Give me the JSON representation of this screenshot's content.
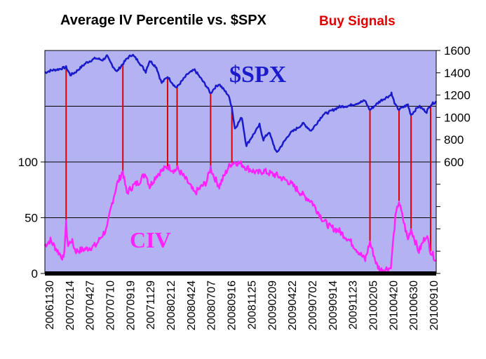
{
  "chart_data": {
    "type": "line",
    "title": "Average IV Percentile vs. $SPX",
    "subtitle": "Buy Signals",
    "colors": {
      "plot_bg": "#b3b3f2",
      "spx": "#1a1acc",
      "civ": "#ff22ff",
      "signal": "#e00000",
      "series_label_spx": "#1a1acc",
      "series_label_civ": "#ff22ff"
    },
    "x_tick_labels": [
      "20061130",
      "20070214",
      "20070427",
      "20070710",
      "20070919",
      "20071129",
      "20080212",
      "20080424",
      "20080707",
      "20080916",
      "20081125",
      "20090209",
      "20090422",
      "20090702",
      "20090914",
      "20091123",
      "20100205",
      "20100420",
      "20100630",
      "20100910"
    ],
    "x_range": [
      "2006-11-30",
      "2010-09-30"
    ],
    "left_axis": {
      "ticks": [
        0,
        50,
        100
      ],
      "ylim": [
        0,
        200
      ]
    },
    "right_axis": {
      "ticks": [
        600,
        800,
        1000,
        1200,
        1400,
        1600
      ],
      "ylim": [
        -400,
        1600
      ]
    },
    "grid": true,
    "series": [
      {
        "name": "$SPX",
        "axis": "right",
        "points": [
          [
            "2006-11-30",
            1400
          ],
          [
            "2006-12-20",
            1420
          ],
          [
            "2007-01-15",
            1430
          ],
          [
            "2007-02-14",
            1450
          ],
          [
            "2007-03-01",
            1380
          ],
          [
            "2007-03-20",
            1405
          ],
          [
            "2007-04-27",
            1490
          ],
          [
            "2007-05-31",
            1530
          ],
          [
            "2007-06-25",
            1515
          ],
          [
            "2007-07-10",
            1550
          ],
          [
            "2007-07-26",
            1480
          ],
          [
            "2007-08-15",
            1410
          ],
          [
            "2007-09-19",
            1525
          ],
          [
            "2007-10-09",
            1565
          ],
          [
            "2007-11-01",
            1500
          ],
          [
            "2007-11-26",
            1410
          ],
          [
            "2007-12-10",
            1510
          ],
          [
            "2008-01-03",
            1450
          ],
          [
            "2008-01-22",
            1310
          ],
          [
            "2008-02-12",
            1365
          ],
          [
            "2008-03-10",
            1275
          ],
          [
            "2008-03-17",
            1270
          ],
          [
            "2008-04-24",
            1390
          ],
          [
            "2008-05-19",
            1425
          ],
          [
            "2008-06-30",
            1280
          ],
          [
            "2008-07-15",
            1215
          ],
          [
            "2008-07-31",
            1270
          ],
          [
            "2008-08-15",
            1300
          ],
          [
            "2008-09-16",
            1200
          ],
          [
            "2008-09-29",
            1100
          ],
          [
            "2008-10-10",
            900
          ],
          [
            "2008-11-04",
            1000
          ],
          [
            "2008-11-20",
            750
          ],
          [
            "2008-12-30",
            900
          ],
          [
            "2009-01-06",
            935
          ],
          [
            "2009-01-20",
            800
          ],
          [
            "2009-02-09",
            870
          ],
          [
            "2009-03-09",
            680
          ],
          [
            "2009-04-22",
            850
          ],
          [
            "2009-06-12",
            945
          ],
          [
            "2009-07-10",
            880
          ],
          [
            "2009-08-21",
            1025
          ],
          [
            "2009-09-14",
            1050
          ],
          [
            "2009-10-19",
            1095
          ],
          [
            "2009-11-23",
            1105
          ],
          [
            "2010-01-19",
            1150
          ],
          [
            "2010-02-05",
            1065
          ],
          [
            "2010-03-15",
            1150
          ],
          [
            "2010-04-20",
            1200
          ],
          [
            "2010-04-23",
            1217
          ],
          [
            "2010-05-07",
            1110
          ],
          [
            "2010-05-20",
            1070
          ],
          [
            "2010-06-21",
            1115
          ],
          [
            "2010-07-02",
            1022
          ],
          [
            "2010-07-30",
            1100
          ],
          [
            "2010-08-27",
            1050
          ],
          [
            "2010-09-10",
            1110
          ],
          [
            "2010-09-30",
            1145
          ]
        ]
      },
      {
        "name": "CIV",
        "axis": "left",
        "points": [
          [
            "2006-11-30",
            25
          ],
          [
            "2006-12-20",
            30
          ],
          [
            "2007-01-15",
            20
          ],
          [
            "2007-01-31",
            15
          ],
          [
            "2007-02-05",
            12
          ],
          [
            "2007-02-14",
            45
          ],
          [
            "2007-02-21",
            25
          ],
          [
            "2007-03-06",
            30
          ],
          [
            "2007-03-20",
            20
          ],
          [
            "2007-04-27",
            22
          ],
          [
            "2007-05-31",
            25
          ],
          [
            "2007-06-25",
            35
          ],
          [
            "2007-07-10",
            40
          ],
          [
            "2007-07-26",
            60
          ],
          [
            "2007-08-15",
            80
          ],
          [
            "2007-09-05",
            92
          ],
          [
            "2007-09-19",
            72
          ],
          [
            "2007-10-09",
            78
          ],
          [
            "2007-11-01",
            82
          ],
          [
            "2007-11-26",
            90
          ],
          [
            "2007-12-10",
            78
          ],
          [
            "2008-01-03",
            88
          ],
          [
            "2008-01-22",
            92
          ],
          [
            "2008-02-12",
            96
          ],
          [
            "2008-03-10",
            92
          ],
          [
            "2008-03-17",
            95
          ],
          [
            "2008-04-24",
            82
          ],
          [
            "2008-05-19",
            72
          ],
          [
            "2008-06-30",
            82
          ],
          [
            "2008-07-15",
            95
          ],
          [
            "2008-07-31",
            85
          ],
          [
            "2008-08-15",
            78
          ],
          [
            "2008-09-16",
            95
          ],
          [
            "2008-09-29",
            99
          ],
          [
            "2008-10-10",
            100
          ],
          [
            "2008-11-04",
            98
          ],
          [
            "2008-11-20",
            95
          ],
          [
            "2008-12-30",
            90
          ],
          [
            "2009-01-20",
            92
          ],
          [
            "2009-02-09",
            90
          ],
          [
            "2009-03-09",
            88
          ],
          [
            "2009-04-22",
            82
          ],
          [
            "2009-06-12",
            70
          ],
          [
            "2009-07-10",
            65
          ],
          [
            "2009-08-21",
            48
          ],
          [
            "2009-09-14",
            42
          ],
          [
            "2009-10-19",
            38
          ],
          [
            "2009-11-23",
            30
          ],
          [
            "2010-01-19",
            12
          ],
          [
            "2010-02-05",
            28
          ],
          [
            "2010-03-01",
            8
          ],
          [
            "2010-03-15",
            3
          ],
          [
            "2010-04-20",
            5
          ],
          [
            "2010-04-23",
            10
          ],
          [
            "2010-05-07",
            50
          ],
          [
            "2010-05-20",
            65
          ],
          [
            "2010-06-21",
            30
          ],
          [
            "2010-07-02",
            40
          ],
          [
            "2010-07-30",
            20
          ],
          [
            "2010-08-27",
            35
          ],
          [
            "2010-09-10",
            20
          ],
          [
            "2010-09-30",
            12
          ]
        ]
      }
    ],
    "series_labels": {
      "spx": "$SPX",
      "civ": "CIV"
    },
    "buy_signals": [
      "2007-02-14",
      "2007-09-05",
      "2008-02-12",
      "2008-03-17",
      "2008-07-15",
      "2008-09-29",
      "2010-02-05",
      "2010-05-20",
      "2010-07-02",
      "2010-09-10"
    ]
  }
}
